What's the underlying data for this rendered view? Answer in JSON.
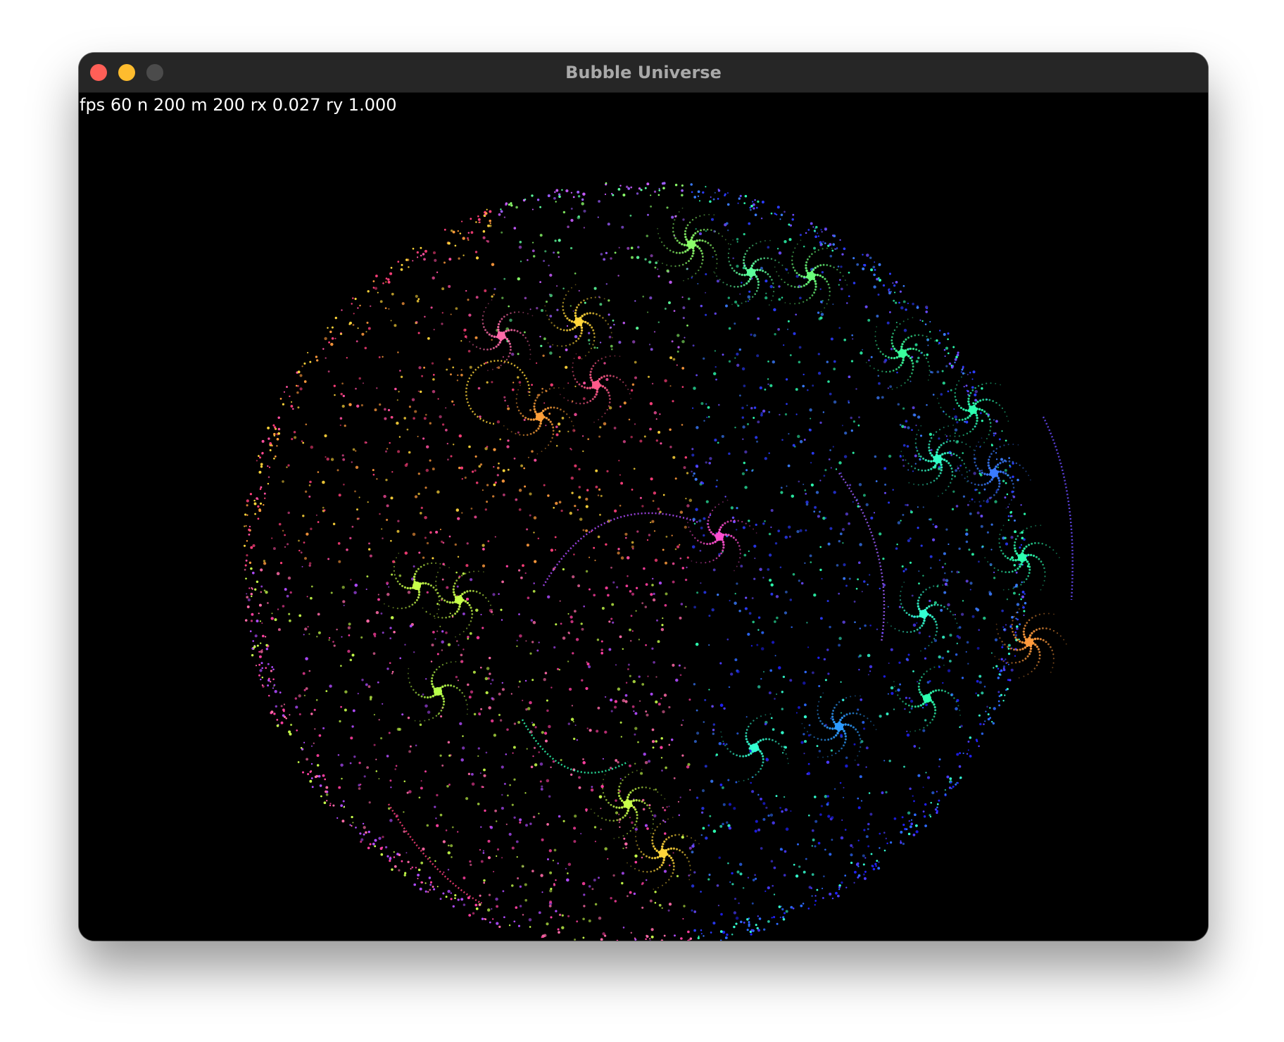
{
  "window": {
    "title": "Bubble Universe",
    "controls": [
      "close",
      "minimize",
      "zoom"
    ],
    "control_colors": {
      "close": "#ff5f57",
      "minimize": "#febc2e",
      "zoom": "#4b4b4b"
    }
  },
  "stats": {
    "text": "fps 60 n 200 m 200 rx 0.027 ry 1.000",
    "fps": 60,
    "n": 200,
    "m": 200,
    "rx": 0.027,
    "ry": 1.0
  },
  "canvas": {
    "background": "#000000",
    "palette": {
      "upper-left": [
        "#ff4fa0",
        "#ff9a3c",
        "#ffd53a",
        "#ff3f7a"
      ],
      "top-band": [
        "#9b5cff",
        "#8cff6a",
        "#5dff9c",
        "#c85cff"
      ],
      "right": [
        "#2b3bff",
        "#3a7bff",
        "#2dffb0",
        "#6a4bff"
      ],
      "lower-left": [
        "#ff3fa0",
        "#b04bff",
        "#c8ff4a",
        "#ff6aa8"
      ],
      "lower-right": [
        "#2020ff",
        "#2d6aff",
        "#33ffd0",
        "#4a3bff"
      ]
    }
  }
}
